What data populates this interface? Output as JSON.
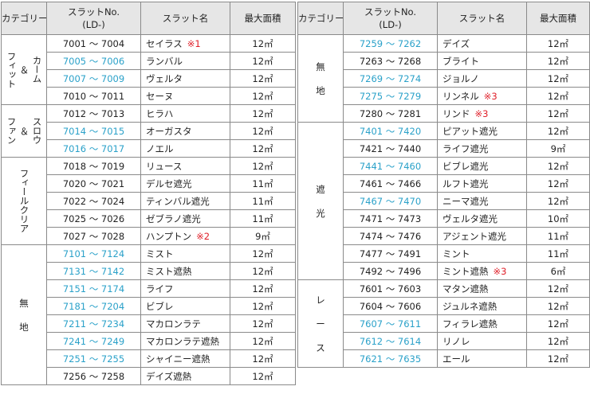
{
  "headers": {
    "category": "カテゴリー",
    "slat_no_1": "スラットNo.",
    "slat_no_2": "(LD-)",
    "name": "スラット名",
    "area": "最大面積"
  },
  "left": {
    "categories": [
      {
        "lines": [
          "フィット",
          "＆",
          "カーム"
        ],
        "rows": [
          {
            "range": "7001 ～ 7004",
            "blue": false,
            "name": "セイラス",
            "note": "※1",
            "area": "12㎡"
          },
          {
            "range": "7005 ～ 7006",
            "blue": true,
            "name": "ランバル",
            "note": "",
            "area": "12㎡"
          },
          {
            "range": "7007 ～ 7009",
            "blue": true,
            "name": "ヴェルタ",
            "note": "",
            "area": "12㎡"
          },
          {
            "range": "7010 ～ 7011",
            "blue": false,
            "name": "セーヌ",
            "note": "",
            "area": "12㎡"
          }
        ]
      },
      {
        "lines": [
          "ファン",
          "＆",
          "スロウ"
        ],
        "rows": [
          {
            "range": "7012 ～ 7013",
            "blue": false,
            "name": "ヒラハ",
            "note": "",
            "area": "12㎡"
          },
          {
            "range": "7014 ～ 7015",
            "blue": true,
            "name": "オーガスタ",
            "note": "",
            "area": "12㎡"
          },
          {
            "range": "7016 ～ 7017",
            "blue": true,
            "name": "ノエル",
            "note": "",
            "area": "12㎡"
          }
        ]
      },
      {
        "lines": [
          "フィールクリア"
        ],
        "rows": [
          {
            "range": "7018 ～ 7019",
            "blue": false,
            "name": "リュース",
            "note": "",
            "area": "12㎡"
          },
          {
            "range": "7020 ～ 7021",
            "blue": false,
            "name": "デルセ遮光",
            "note": "",
            "area": "11㎡"
          },
          {
            "range": "7022 ～ 7024",
            "blue": false,
            "name": "ティンバル遮光",
            "note": "",
            "area": "11㎡"
          },
          {
            "range": "7025 ～ 7026",
            "blue": false,
            "name": "ゼブラノ遮光",
            "note": "",
            "area": "11㎡"
          },
          {
            "range": "7027 ～ 7028",
            "blue": false,
            "name": "ハンプトン",
            "note": "※2",
            "area": "9㎡"
          }
        ]
      },
      {
        "lines": [
          "無",
          "地"
        ],
        "rows": [
          {
            "range": "7101 ～ 7124",
            "blue": true,
            "name": "ミスト",
            "note": "",
            "area": "12㎡"
          },
          {
            "range": "7131 ～ 7142",
            "blue": true,
            "name": "ミスト遮熱",
            "note": "",
            "area": "12㎡"
          },
          {
            "range": "7151 ～ 7174",
            "blue": true,
            "name": "ライフ",
            "note": "",
            "area": "12㎡"
          },
          {
            "range": "7181 ～ 7204",
            "blue": true,
            "name": "ビブレ",
            "note": "",
            "area": "12㎡"
          },
          {
            "range": "7211 ～ 7234",
            "blue": true,
            "name": "マカロンラテ",
            "note": "",
            "area": "12㎡"
          },
          {
            "range": "7241 ～ 7249",
            "blue": true,
            "name": "マカロンラテ遮熱",
            "note": "",
            "area": "12㎡"
          },
          {
            "range": "7251 ～ 7255",
            "blue": true,
            "name": "シャイニー遮熱",
            "note": "",
            "area": "12㎡"
          },
          {
            "range": "7256 ～ 7258",
            "blue": false,
            "name": "デイズ遮熱",
            "note": "",
            "area": "12㎡"
          }
        ]
      }
    ]
  },
  "right": {
    "categories": [
      {
        "lines": [
          "無",
          "地"
        ],
        "rows": [
          {
            "range": "7259 ～ 7262",
            "blue": true,
            "name": "デイズ",
            "note": "",
            "area": "12㎡"
          },
          {
            "range": "7263 ～ 7268",
            "blue": false,
            "name": "ブライト",
            "note": "",
            "area": "12㎡"
          },
          {
            "range": "7269 ～ 7274",
            "blue": true,
            "name": "ジョルノ",
            "note": "",
            "area": "12㎡"
          },
          {
            "range": "7275 ～ 7279",
            "blue": true,
            "name": "リンネル",
            "note": "※3",
            "area": "12㎡"
          },
          {
            "range": "7280 ～ 7281",
            "blue": false,
            "name": "リンド",
            "note": "※3",
            "area": "12㎡"
          }
        ]
      },
      {
        "lines": [
          "遮",
          "光"
        ],
        "rows": [
          {
            "range": "7401 ～ 7420",
            "blue": true,
            "name": "ピアット遮光",
            "note": "",
            "area": "12㎡"
          },
          {
            "range": "7421 ～ 7440",
            "blue": false,
            "name": "ライフ遮光",
            "note": "",
            "area": "9㎡"
          },
          {
            "range": "7441 ～ 7460",
            "blue": true,
            "name": "ビブレ遮光",
            "note": "",
            "area": "12㎡"
          },
          {
            "range": "7461 ～ 7466",
            "blue": false,
            "name": "ルフト遮光",
            "note": "",
            "area": "12㎡"
          },
          {
            "range": "7467 ～ 7470",
            "blue": true,
            "name": "ニーマ遮光",
            "note": "",
            "area": "12㎡"
          },
          {
            "range": "7471 ～ 7473",
            "blue": false,
            "name": "ヴェルタ遮光",
            "note": "",
            "area": "10㎡"
          },
          {
            "range": "7474 ～ 7476",
            "blue": false,
            "name": "アジェント遮光",
            "note": "",
            "area": "11㎡"
          },
          {
            "range": "7477 ～ 7491",
            "blue": false,
            "name": "ミント",
            "note": "",
            "area": "11㎡"
          },
          {
            "range": "7492 ～ 7496",
            "blue": false,
            "name": "ミント遮熱",
            "note": "※3",
            "area": "6㎡"
          }
        ]
      },
      {
        "lines": [
          "レ",
          "ー",
          "ス"
        ],
        "rows": [
          {
            "range": "7601 ～ 7603",
            "blue": false,
            "name": "マタン遮熱",
            "note": "",
            "area": "12㎡"
          },
          {
            "range": "7604 ～ 7606",
            "blue": false,
            "name": "ジュルネ遮熱",
            "note": "",
            "area": "12㎡"
          },
          {
            "range": "7607 ～ 7611",
            "blue": true,
            "name": "フィラレ遮熱",
            "note": "",
            "area": "12㎡"
          },
          {
            "range": "7612 ～ 7614",
            "blue": true,
            "name": "リノレ",
            "note": "",
            "area": "12㎡"
          },
          {
            "range": "7621 ～ 7635",
            "blue": true,
            "name": "エール",
            "note": "",
            "area": "12㎡"
          }
        ]
      }
    ]
  }
}
